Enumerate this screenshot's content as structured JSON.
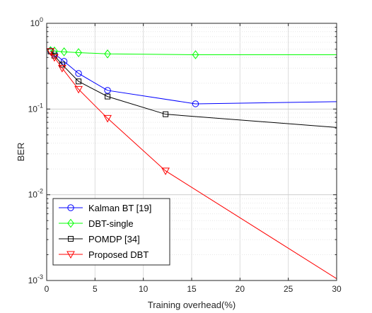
{
  "chart_data": {
    "type": "line",
    "title": "",
    "xlabel": "Training overhead(%)",
    "ylabel": "BER",
    "xlim": [
      0,
      30
    ],
    "ylim": [
      0.001,
      1
    ],
    "yscale": "log",
    "grid": true,
    "legend_position": "bottom-left",
    "x_ticks": [
      {
        "value": 0,
        "label": "0"
      },
      {
        "value": 5,
        "label": "5"
      },
      {
        "value": 10,
        "label": "10"
      },
      {
        "value": 15,
        "label": "15"
      },
      {
        "value": 20,
        "label": "20"
      },
      {
        "value": 25,
        "label": "25"
      },
      {
        "value": 30,
        "label": "30"
      }
    ],
    "y_ticks": [
      {
        "value": 1,
        "base": "10",
        "exp": "0"
      },
      {
        "value": 0.1,
        "base": "10",
        "exp": "-1"
      },
      {
        "value": 0.01,
        "base": "10",
        "exp": "-2"
      },
      {
        "value": 0.001,
        "base": "10",
        "exp": "-3"
      }
    ],
    "series": [
      {
        "name": "Kalman BT [19]",
        "color": "#0000ff",
        "marker": "circle",
        "x": [
          0.4,
          0.8,
          1.8,
          3.3,
          6.3,
          15.4,
          30
        ],
        "y": [
          0.48,
          0.44,
          0.36,
          0.26,
          0.165,
          0.115,
          0.122
        ],
        "marker_count": 6
      },
      {
        "name": "DBT-single",
        "color": "#00ff00",
        "marker": "diamond",
        "x": [
          0.4,
          0.8,
          1.8,
          3.3,
          6.3,
          15.4,
          30
        ],
        "y": [
          0.48,
          0.475,
          0.465,
          0.455,
          0.44,
          0.43,
          0.43
        ],
        "marker_count": 6
      },
      {
        "name": "POMDP [34]",
        "color": "#000000",
        "marker": "square",
        "x": [
          0.4,
          0.8,
          1.6,
          3.3,
          6.3,
          12.3,
          30
        ],
        "y": [
          0.47,
          0.42,
          0.33,
          0.21,
          0.14,
          0.087,
          0.061
        ],
        "marker_count": 6
      },
      {
        "name": "Proposed DBT",
        "color": "#ff0000",
        "marker": "triangle-down",
        "x": [
          0.4,
          0.8,
          1.6,
          3.3,
          6.3,
          12.3,
          30
        ],
        "y": [
          0.47,
          0.4,
          0.3,
          0.17,
          0.078,
          0.019,
          0.00105
        ],
        "marker_count": 6
      }
    ]
  }
}
